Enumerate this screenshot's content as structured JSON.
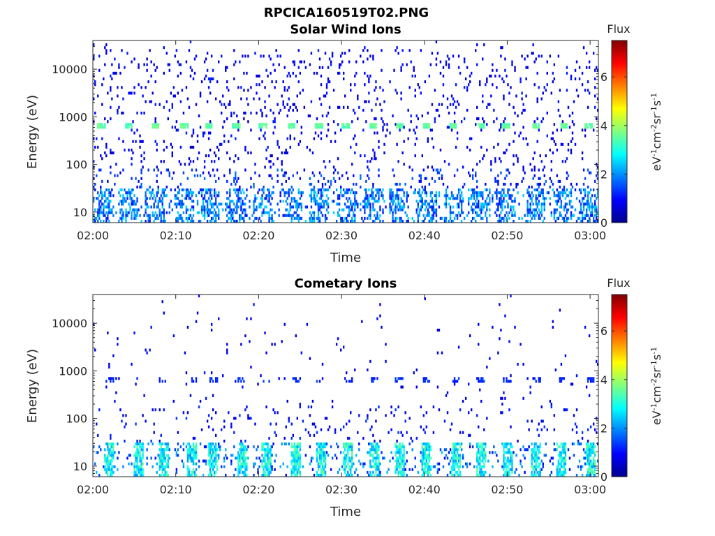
{
  "figure_title": "RPCICA160519T02.PNG",
  "chart_data": [
    {
      "type": "heatmap",
      "title": "Solar Wind Ions",
      "xlabel": "Time",
      "ylabel": "Energy (eV)",
      "y_scale": "log",
      "ylim": [
        6,
        40000
      ],
      "xlim": [
        "02:00",
        "03:01"
      ],
      "x_ticks": [
        "02:00",
        "02:10",
        "02:20",
        "02:30",
        "02:40",
        "02:50",
        "03:00"
      ],
      "y_ticks": [
        "10",
        "100",
        "1000",
        "10000"
      ],
      "y_tick_values": [
        10,
        100,
        1000,
        10000
      ],
      "colorbar": {
        "title": "Flux",
        "label": "eV-1cm-2sr-1s-1",
        "range": [
          0,
          7.5
        ],
        "ticks": [
          "0",
          "2",
          "4",
          "6"
        ],
        "tick_values": [
          0,
          2,
          4,
          6
        ],
        "colormap": "jet"
      },
      "features": {
        "peak_energy_eV": 650,
        "peak_flux": 3.5,
        "peak_times_min": [
          1,
          4.3,
          7.5,
          11,
          14,
          17.3,
          20.5,
          24,
          27.3,
          30.5,
          33.8,
          37,
          40.3,
          43.5,
          46.8,
          49.8,
          53.5,
          56.8,
          59.8
        ],
        "low_energy_band_eV": [
          6,
          30
        ],
        "low_energy_flux": 1.8,
        "background_flux": 0.5
      }
    },
    {
      "type": "heatmap",
      "title": "Cometary Ions",
      "xlabel": "Time",
      "ylabel": "Energy (eV)",
      "y_scale": "log",
      "ylim": [
        6,
        40000
      ],
      "xlim": [
        "02:00",
        "03:01"
      ],
      "x_ticks": [
        "02:00",
        "02:10",
        "02:20",
        "02:30",
        "02:40",
        "02:50",
        "03:00"
      ],
      "y_ticks": [
        "10",
        "100",
        "1000",
        "10000"
      ],
      "y_tick_values": [
        10,
        100,
        1000,
        10000
      ],
      "colorbar": {
        "title": "Flux",
        "label": "eV-1cm-2sr-1s-1",
        "range": [
          0,
          7.5
        ],
        "ticks": [
          "0",
          "2",
          "4",
          "6"
        ],
        "tick_values": [
          0,
          2,
          4,
          6
        ],
        "colormap": "jet"
      },
      "features": {
        "peak_energy_eV": 650,
        "peak_flux": 1.2,
        "low_energy_band_eV": [
          6,
          30
        ],
        "low_energy_flux": 2.8,
        "burst_times_min": [
          2,
          5.5,
          8.5,
          12,
          14.5,
          18,
          21,
          24.5,
          27.5,
          30.8,
          34,
          37,
          40.3,
          43.8,
          46.8,
          50,
          53.5,
          56.5,
          60
        ],
        "background_flux": 0.6
      }
    }
  ]
}
